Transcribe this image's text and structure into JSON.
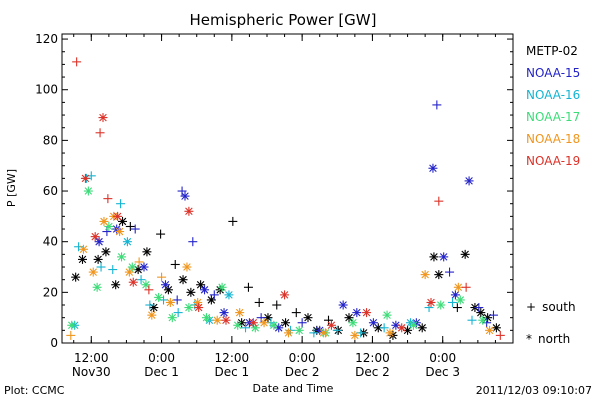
{
  "chart_data": {
    "type": "scatter",
    "title": "Hemispheric Power [GW]",
    "ylabel": "P [GW]",
    "xlabel": "Date and Time",
    "ylim": [
      0,
      122
    ],
    "yticks": [
      0,
      20,
      40,
      60,
      80,
      100,
      120
    ],
    "xlim": [
      "2011-11-30T07:00",
      "2011-12-03T12:00"
    ],
    "xticks": [
      {
        "time": "2011-11-30T12:00",
        "line1": "12:00",
        "line2": "Nov30"
      },
      {
        "time": "2011-12-01T00:00",
        "line1": "0:00",
        "line2": "Dec 1"
      },
      {
        "time": "2011-12-01T12:00",
        "line1": "12:00",
        "line2": "Dec 1"
      },
      {
        "time": "2011-12-02T00:00",
        "line1": "0:00",
        "line2": "Dec 2"
      },
      {
        "time": "2011-12-02T12:00",
        "line1": "12:00",
        "line2": "Dec 2"
      },
      {
        "time": "2011-12-03T00:00",
        "line1": "0:00",
        "line2": "Dec 3"
      }
    ],
    "grid": false,
    "legend_position": "right",
    "marker_legend": [
      {
        "symbol": "+",
        "label": "south"
      },
      {
        "symbol": "*",
        "label": "north"
      }
    ],
    "series": [
      {
        "name": "METP-02",
        "color": "#000000",
        "points": [
          [
            "2011-11-30T09:20",
            26,
            "north"
          ],
          [
            "2011-11-30T10:30",
            33,
            "north"
          ],
          [
            "2011-11-30T13:10",
            33,
            "north"
          ],
          [
            "2011-11-30T14:30",
            36,
            "north"
          ],
          [
            "2011-11-30T16:10",
            23,
            "north"
          ],
          [
            "2011-11-30T17:20",
            48,
            "north"
          ],
          [
            "2011-11-30T18:40",
            46,
            "plus"
          ],
          [
            "2011-11-30T20:00",
            29,
            "north"
          ],
          [
            "2011-11-30T21:30",
            36,
            "north"
          ],
          [
            "2011-11-30T22:40",
            14,
            "north"
          ],
          [
            "2011-11-30T23:50",
            43,
            "plus"
          ],
          [
            "2011-12-01T01:10",
            21,
            "north"
          ],
          [
            "2011-12-01T02:20",
            31,
            "plus"
          ],
          [
            "2011-12-01T03:40",
            25,
            "north"
          ],
          [
            "2011-12-01T05:00",
            20,
            "north"
          ],
          [
            "2011-12-01T06:40",
            23,
            "north"
          ],
          [
            "2011-12-01T08:30",
            17,
            "north"
          ],
          [
            "2011-12-01T10:00",
            21,
            "north"
          ],
          [
            "2011-12-01T12:10",
            48,
            "plus"
          ],
          [
            "2011-12-01T13:40",
            8,
            "north"
          ],
          [
            "2011-12-01T14:50",
            22,
            "plus"
          ],
          [
            "2011-12-01T16:40",
            16,
            "plus"
          ],
          [
            "2011-12-01T18:10",
            10,
            "north"
          ],
          [
            "2011-12-01T19:40",
            15,
            "plus"
          ],
          [
            "2011-12-01T21:10",
            8,
            "north"
          ],
          [
            "2011-12-01T23:00",
            12,
            "plus"
          ],
          [
            "2011-12-02T01:00",
            10,
            "north"
          ],
          [
            "2011-12-02T02:30",
            5,
            "north"
          ],
          [
            "2011-12-02T04:30",
            9,
            "plus"
          ],
          [
            "2011-12-02T06:10",
            5,
            "north"
          ],
          [
            "2011-12-02T08:00",
            10,
            "north"
          ],
          [
            "2011-12-02T10:30",
            4,
            "north"
          ],
          [
            "2011-12-02T13:00",
            6,
            "north"
          ],
          [
            "2011-12-02T15:30",
            3,
            "north"
          ],
          [
            "2011-12-02T18:00",
            5,
            "north"
          ],
          [
            "2011-12-02T20:30",
            6,
            "north"
          ],
          [
            "2011-12-02T22:30",
            34,
            "north"
          ],
          [
            "2011-12-02T23:20",
            27,
            "north"
          ],
          [
            "2011-12-03T02:30",
            14,
            "plus"
          ],
          [
            "2011-12-03T03:50",
            35,
            "north"
          ],
          [
            "2011-12-03T05:30",
            14,
            "north"
          ],
          [
            "2011-12-03T06:30",
            12,
            "north"
          ],
          [
            "2011-12-03T07:40",
            10,
            "north"
          ],
          [
            "2011-12-03T09:10",
            6,
            "north"
          ]
        ]
      },
      {
        "name": "NOAA-15",
        "color": "#2323c8",
        "points": [
          [
            "2011-11-30T13:20",
            40,
            "north"
          ],
          [
            "2011-11-30T14:40",
            44,
            "plus"
          ],
          [
            "2011-11-30T16:20",
            45,
            "north"
          ],
          [
            "2011-11-30T19:30",
            45,
            "plus"
          ],
          [
            "2011-11-30T21:00",
            30,
            "north"
          ],
          [
            "2011-12-01T00:40",
            23,
            "north"
          ],
          [
            "2011-12-01T02:40",
            17,
            "plus"
          ],
          [
            "2011-12-01T03:30",
            60,
            "plus"
          ],
          [
            "2011-12-01T04:00",
            58,
            "north"
          ],
          [
            "2011-12-01T05:20",
            40,
            "plus"
          ],
          [
            "2011-12-01T07:20",
            21,
            "north"
          ],
          [
            "2011-12-01T09:00",
            19,
            "plus"
          ],
          [
            "2011-12-01T10:40",
            12,
            "north"
          ],
          [
            "2011-12-01T15:00",
            8,
            "north"
          ],
          [
            "2011-12-01T17:00",
            10,
            "plus"
          ],
          [
            "2011-12-01T20:00",
            6,
            "north"
          ],
          [
            "2011-12-02T00:00",
            8,
            "plus"
          ],
          [
            "2011-12-02T03:00",
            5,
            "north"
          ],
          [
            "2011-12-02T07:00",
            15,
            "north"
          ],
          [
            "2011-12-02T09:20",
            12,
            "north"
          ],
          [
            "2011-12-02T12:10",
            8,
            "north"
          ],
          [
            "2011-12-02T16:00",
            7,
            "north"
          ],
          [
            "2011-12-02T19:30",
            8,
            "north"
          ],
          [
            "2011-12-02T22:20",
            69,
            "north"
          ],
          [
            "2011-12-02T23:00",
            94,
            "plus"
          ],
          [
            "2011-12-03T00:10",
            34,
            "north"
          ],
          [
            "2011-12-03T01:10",
            28,
            "plus"
          ],
          [
            "2011-12-03T02:10",
            19,
            "north"
          ],
          [
            "2011-12-03T04:30",
            64,
            "north"
          ],
          [
            "2011-12-03T06:10",
            14,
            "plus"
          ],
          [
            "2011-12-03T07:30",
            8,
            "plus"
          ],
          [
            "2011-12-03T08:40",
            11,
            "plus"
          ]
        ]
      },
      {
        "name": "NOAA-16",
        "color": "#14b4d2",
        "points": [
          [
            "2011-11-30T09:10",
            7,
            "north"
          ],
          [
            "2011-11-30T09:50",
            38,
            "plus"
          ],
          [
            "2011-11-30T11:10",
            65,
            "plus"
          ],
          [
            "2011-11-30T12:00",
            66,
            "plus"
          ],
          [
            "2011-11-30T13:40",
            30,
            "plus"
          ],
          [
            "2011-11-30T15:40",
            29,
            "plus"
          ],
          [
            "2011-11-30T17:00",
            55,
            "plus"
          ],
          [
            "2011-11-30T18:10",
            40,
            "north"
          ],
          [
            "2011-11-30T20:30",
            25,
            "plus"
          ],
          [
            "2011-11-30T22:00",
            15,
            "plus"
          ],
          [
            "2011-12-01T00:20",
            17,
            "plus"
          ],
          [
            "2011-12-01T02:50",
            12,
            "plus"
          ],
          [
            "2011-12-01T05:40",
            15,
            "plus"
          ],
          [
            "2011-12-01T08:10",
            9,
            "north"
          ],
          [
            "2011-12-01T11:30",
            19,
            "north"
          ],
          [
            "2011-12-01T14:20",
            6,
            "plus"
          ],
          [
            "2011-12-01T18:40",
            8,
            "plus"
          ],
          [
            "2011-12-01T22:00",
            5,
            "plus"
          ],
          [
            "2011-12-02T02:00",
            4,
            "plus"
          ],
          [
            "2011-12-02T06:00",
            5,
            "plus"
          ],
          [
            "2011-12-02T10:00",
            4,
            "plus"
          ],
          [
            "2011-12-02T14:00",
            6,
            "plus"
          ],
          [
            "2011-12-02T18:30",
            8,
            "north"
          ],
          [
            "2011-12-02T21:40",
            14,
            "plus"
          ],
          [
            "2011-12-03T01:40",
            16,
            "plus"
          ],
          [
            "2011-12-03T05:00",
            9,
            "plus"
          ]
        ]
      },
      {
        "name": "NOAA-17",
        "color": "#3cdc78",
        "points": [
          [
            "2011-11-30T08:40",
            7,
            "north"
          ],
          [
            "2011-11-30T11:30",
            60,
            "north"
          ],
          [
            "2011-11-30T13:00",
            22,
            "north"
          ],
          [
            "2011-11-30T15:00",
            46,
            "north"
          ],
          [
            "2011-11-30T17:10",
            34,
            "north"
          ],
          [
            "2011-11-30T19:00",
            30,
            "north"
          ],
          [
            "2011-11-30T21:20",
            23,
            "north"
          ],
          [
            "2011-11-30T23:30",
            18,
            "north"
          ],
          [
            "2011-12-01T01:50",
            10,
            "north"
          ],
          [
            "2011-12-01T04:40",
            14,
            "north"
          ],
          [
            "2011-12-01T07:40",
            10,
            "north"
          ],
          [
            "2011-12-01T10:20",
            22,
            "north"
          ],
          [
            "2011-12-01T13:00",
            7,
            "north"
          ],
          [
            "2011-12-01T16:00",
            6,
            "north"
          ],
          [
            "2011-12-01T19:10",
            7,
            "north"
          ],
          [
            "2011-12-01T23:30",
            5,
            "north"
          ],
          [
            "2011-12-02T04:00",
            4,
            "north"
          ],
          [
            "2011-12-02T08:40",
            8,
            "north"
          ],
          [
            "2011-12-02T14:30",
            11,
            "north"
          ],
          [
            "2011-12-02T19:00",
            7,
            "north"
          ],
          [
            "2011-12-02T23:40",
            15,
            "north"
          ],
          [
            "2011-12-03T03:00",
            17,
            "north"
          ],
          [
            "2011-12-03T06:50",
            9,
            "north"
          ]
        ]
      },
      {
        "name": "NOAA-18",
        "color": "#f0961e",
        "points": [
          [
            "2011-11-30T08:30",
            3,
            "plus"
          ],
          [
            "2011-11-30T10:40",
            37,
            "north"
          ],
          [
            "2011-11-30T12:20",
            28,
            "north"
          ],
          [
            "2011-11-30T14:10",
            48,
            "north"
          ],
          [
            "2011-11-30T15:50",
            50,
            "north"
          ],
          [
            "2011-11-30T16:50",
            44,
            "north"
          ],
          [
            "2011-11-30T18:30",
            28,
            "north"
          ],
          [
            "2011-11-30T20:10",
            32,
            "plus"
          ],
          [
            "2011-11-30T22:20",
            11,
            "north"
          ],
          [
            "2011-12-01T00:00",
            26,
            "plus"
          ],
          [
            "2011-12-01T01:30",
            16,
            "north"
          ],
          [
            "2011-12-01T04:20",
            30,
            "north"
          ],
          [
            "2011-12-01T06:10",
            16,
            "north"
          ],
          [
            "2011-12-01T09:30",
            9,
            "north"
          ],
          [
            "2011-12-01T13:20",
            12,
            "north"
          ],
          [
            "2011-12-01T17:30",
            8,
            "north"
          ],
          [
            "2011-12-01T21:40",
            4,
            "north"
          ],
          [
            "2011-12-02T03:40",
            4,
            "north"
          ],
          [
            "2011-12-02T09:00",
            3,
            "north"
          ],
          [
            "2011-12-02T15:00",
            4,
            "north"
          ],
          [
            "2011-12-02T21:00",
            27,
            "north"
          ],
          [
            "2011-12-03T02:40",
            22,
            "north"
          ],
          [
            "2011-12-03T08:00",
            5,
            "north"
          ]
        ]
      },
      {
        "name": "NOAA-19",
        "color": "#dc3228",
        "points": [
          [
            "2011-11-30T09:30",
            111,
            "plus"
          ],
          [
            "2011-11-30T11:00",
            65,
            "north"
          ],
          [
            "2011-11-30T12:40",
            42,
            "north"
          ],
          [
            "2011-11-30T13:30",
            83,
            "plus"
          ],
          [
            "2011-11-30T14:00",
            89,
            "north"
          ],
          [
            "2011-11-30T14:50",
            57,
            "plus"
          ],
          [
            "2011-11-30T16:30",
            50,
            "north"
          ],
          [
            "2011-11-30T19:10",
            24,
            "north"
          ],
          [
            "2011-11-30T21:50",
            21,
            "plus"
          ],
          [
            "2011-12-01T04:40",
            52,
            "north"
          ],
          [
            "2011-12-01T06:20",
            14,
            "north"
          ],
          [
            "2011-12-01T11:00",
            9,
            "north"
          ],
          [
            "2011-12-01T15:40",
            8,
            "north"
          ],
          [
            "2011-12-01T21:00",
            19,
            "north"
          ],
          [
            "2011-12-02T05:00",
            7,
            "north"
          ],
          [
            "2011-12-02T11:00",
            12,
            "north"
          ],
          [
            "2011-12-02T17:00",
            6,
            "north"
          ],
          [
            "2011-12-02T22:00",
            16,
            "north"
          ],
          [
            "2011-12-02T23:20",
            56,
            "plus"
          ],
          [
            "2011-12-03T04:00",
            22,
            "plus"
          ],
          [
            "2011-12-03T09:50",
            3,
            "plus"
          ]
        ]
      }
    ]
  },
  "footer": {
    "left": "Plot: CCMC",
    "right": "2011/12/03 09:10:07"
  }
}
